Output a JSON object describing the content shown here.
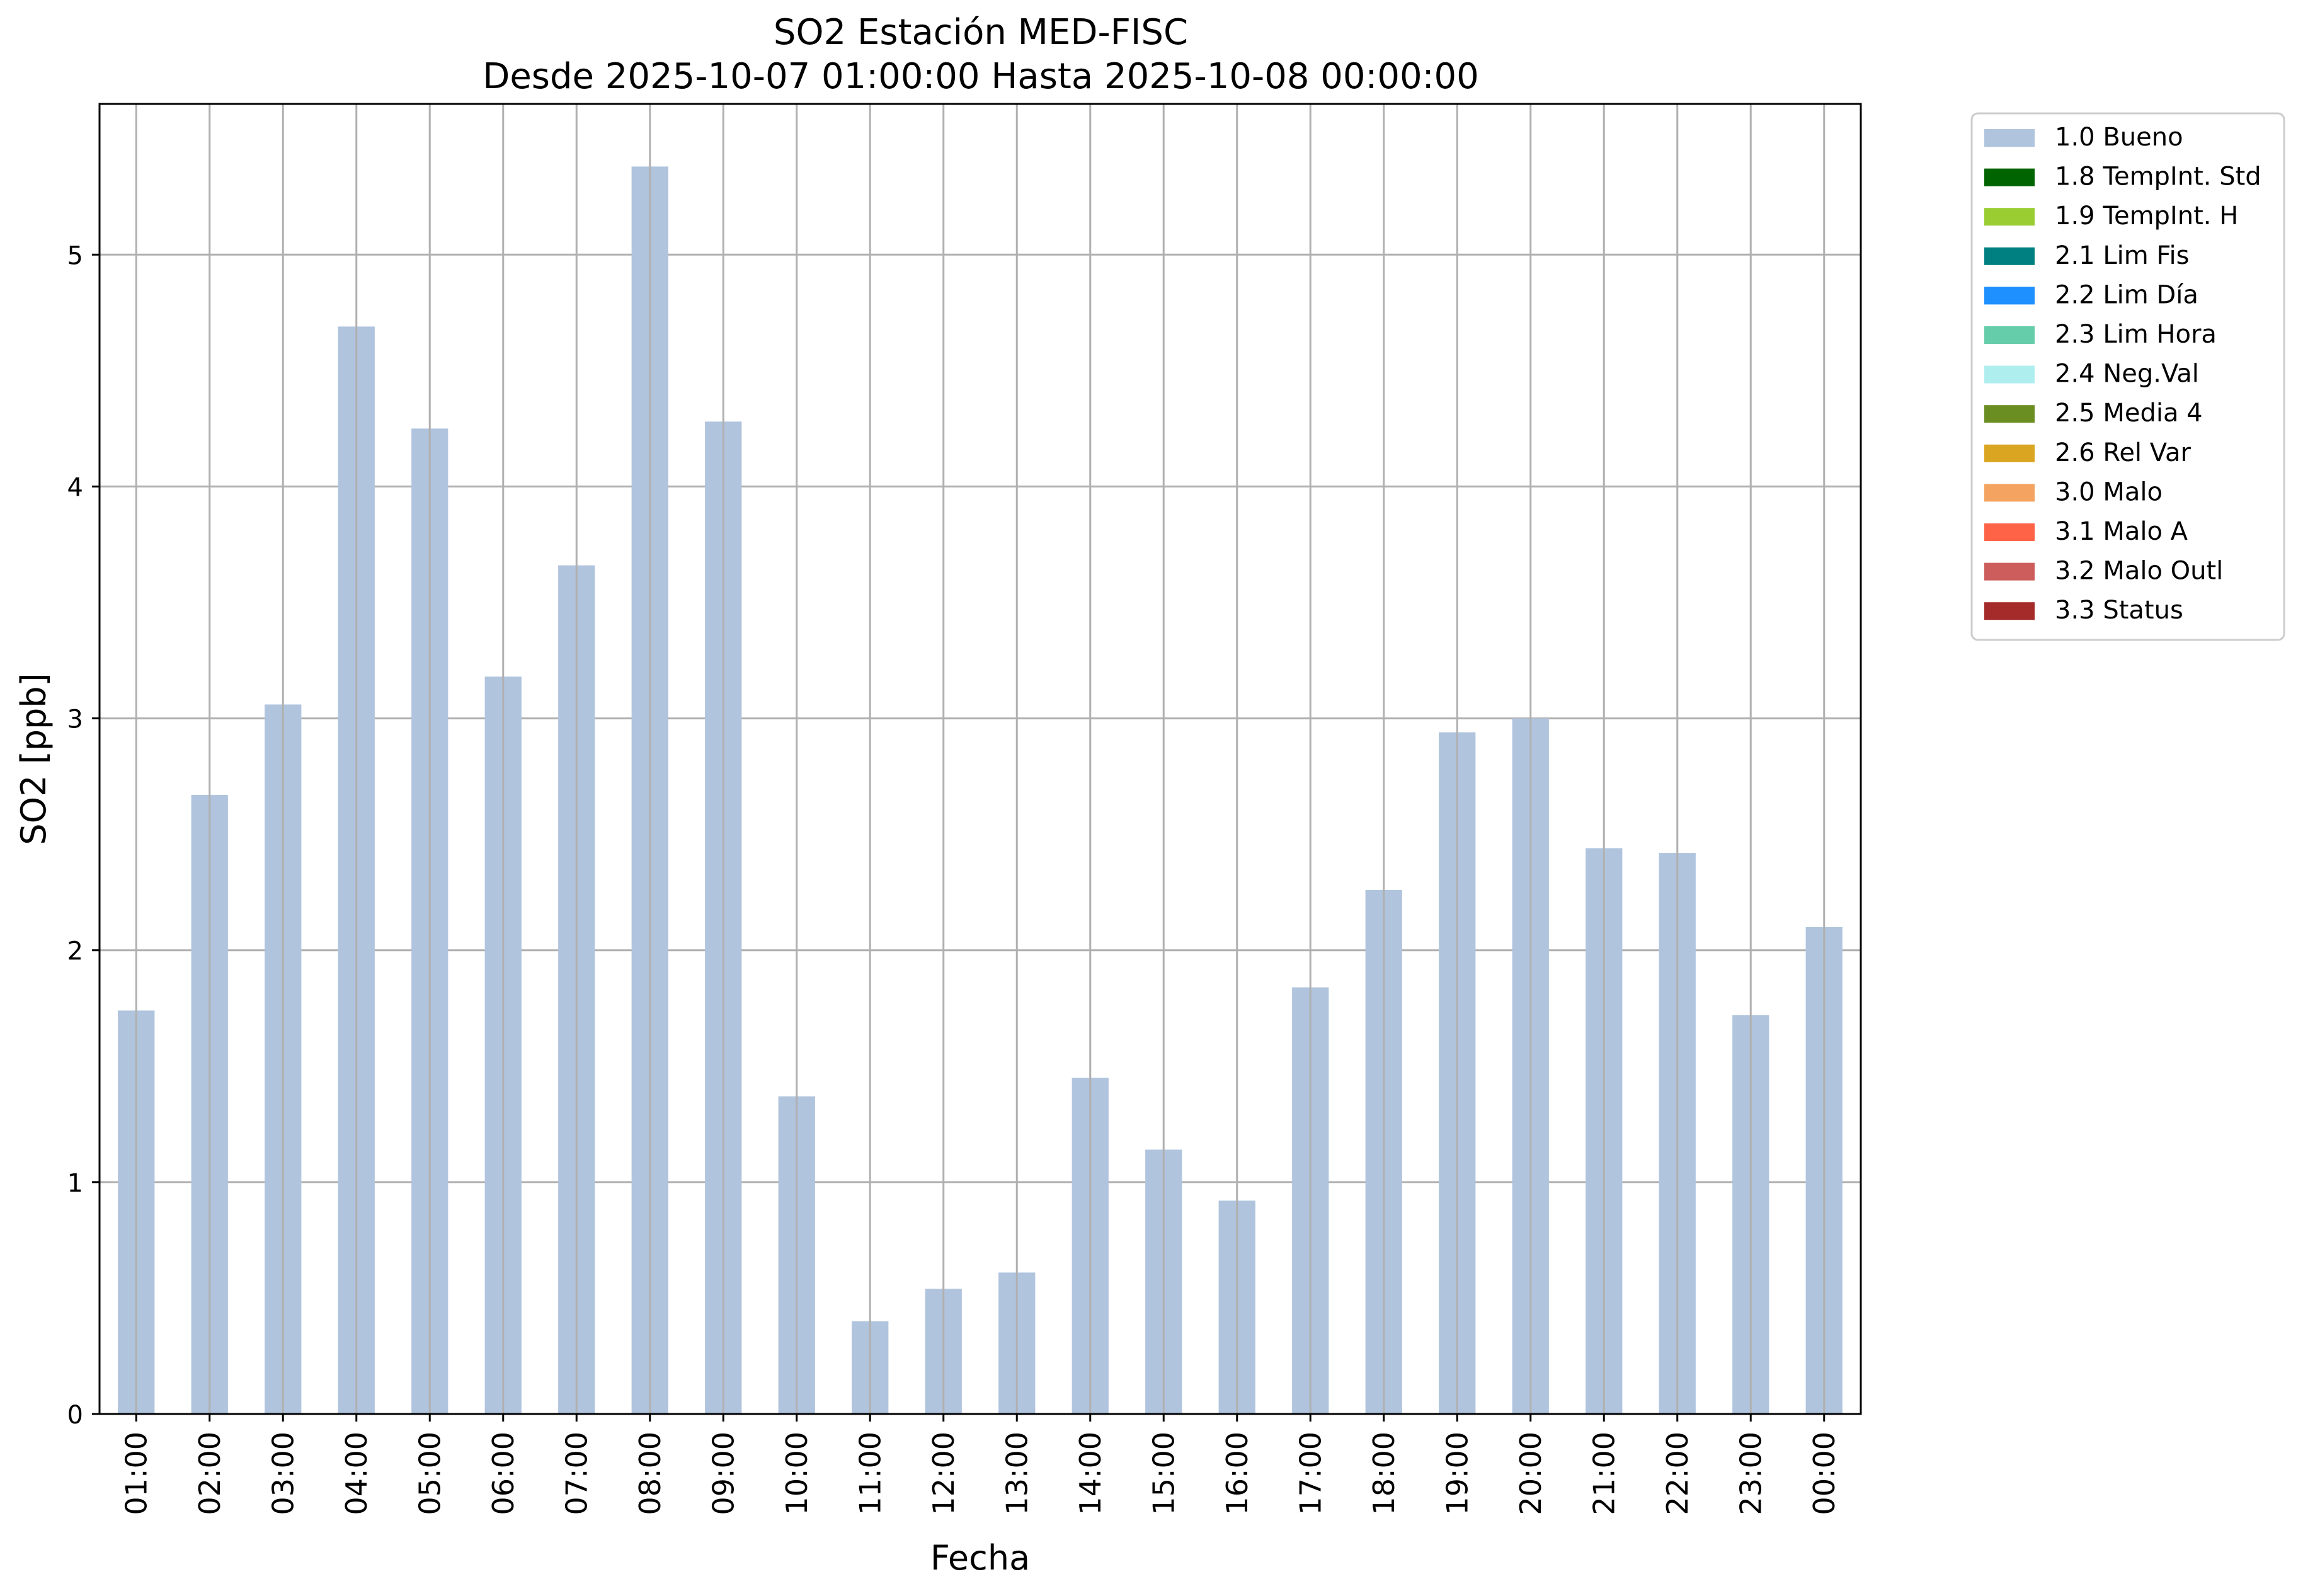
{
  "chart_data": {
    "type": "bar",
    "title": "SO2 Estación MED-FISC",
    "subtitle": "Desde 2025-10-07 01:00:00 Hasta 2025-10-08 00:00:00",
    "xlabel": "Fecha",
    "ylabel": "SO2 [ppb]",
    "ylim": [
      0,
      5.65
    ],
    "yticks": [
      "0",
      "1",
      "2",
      "3",
      "4",
      "5"
    ],
    "grid": true,
    "legend_position": "outside-top-right",
    "bar_color": "#b0c4de",
    "categories": [
      "01:00",
      "02:00",
      "03:00",
      "04:00",
      "05:00",
      "06:00",
      "07:00",
      "08:00",
      "09:00",
      "10:00",
      "11:00",
      "12:00",
      "13:00",
      "14:00",
      "15:00",
      "16:00",
      "17:00",
      "18:00",
      "19:00",
      "20:00",
      "21:00",
      "22:00",
      "23:00",
      "00:00"
    ],
    "series": [
      {
        "name": "1.0 Bueno",
        "values": [
          1.74,
          2.67,
          3.06,
          4.69,
          4.25,
          3.18,
          3.66,
          5.38,
          4.28,
          1.37,
          0.4,
          0.54,
          0.61,
          1.45,
          1.14,
          0.92,
          1.84,
          2.26,
          2.94,
          3.0,
          2.44,
          2.42,
          1.72,
          2.1
        ]
      }
    ],
    "legend": [
      {
        "label": "1.0 Bueno",
        "color": "#b0c4de"
      },
      {
        "label": "1.8 TempInt. Std",
        "color": "#006400"
      },
      {
        "label": "1.9 TempInt. H",
        "color": "#9acd32"
      },
      {
        "label": "2.1 Lim Fis",
        "color": "#008080"
      },
      {
        "label": "2.2 Lim Día",
        "color": "#1e90ff"
      },
      {
        "label": "2.3 Lim Hora",
        "color": "#66cdaa"
      },
      {
        "label": "2.4 Neg.Val",
        "color": "#afeeee"
      },
      {
        "label": "2.5 Media 4",
        "color": "#6b8e23"
      },
      {
        "label": "2.6 Rel Var",
        "color": "#daa520"
      },
      {
        "label": "3.0 Malo",
        "color": "#f4a460"
      },
      {
        "label": "3.1 Malo A",
        "color": "#ff6347"
      },
      {
        "label": "3.2 Malo Outl",
        "color": "#cd5c5c"
      },
      {
        "label": "3.3 Status",
        "color": "#a52a2a"
      }
    ]
  }
}
